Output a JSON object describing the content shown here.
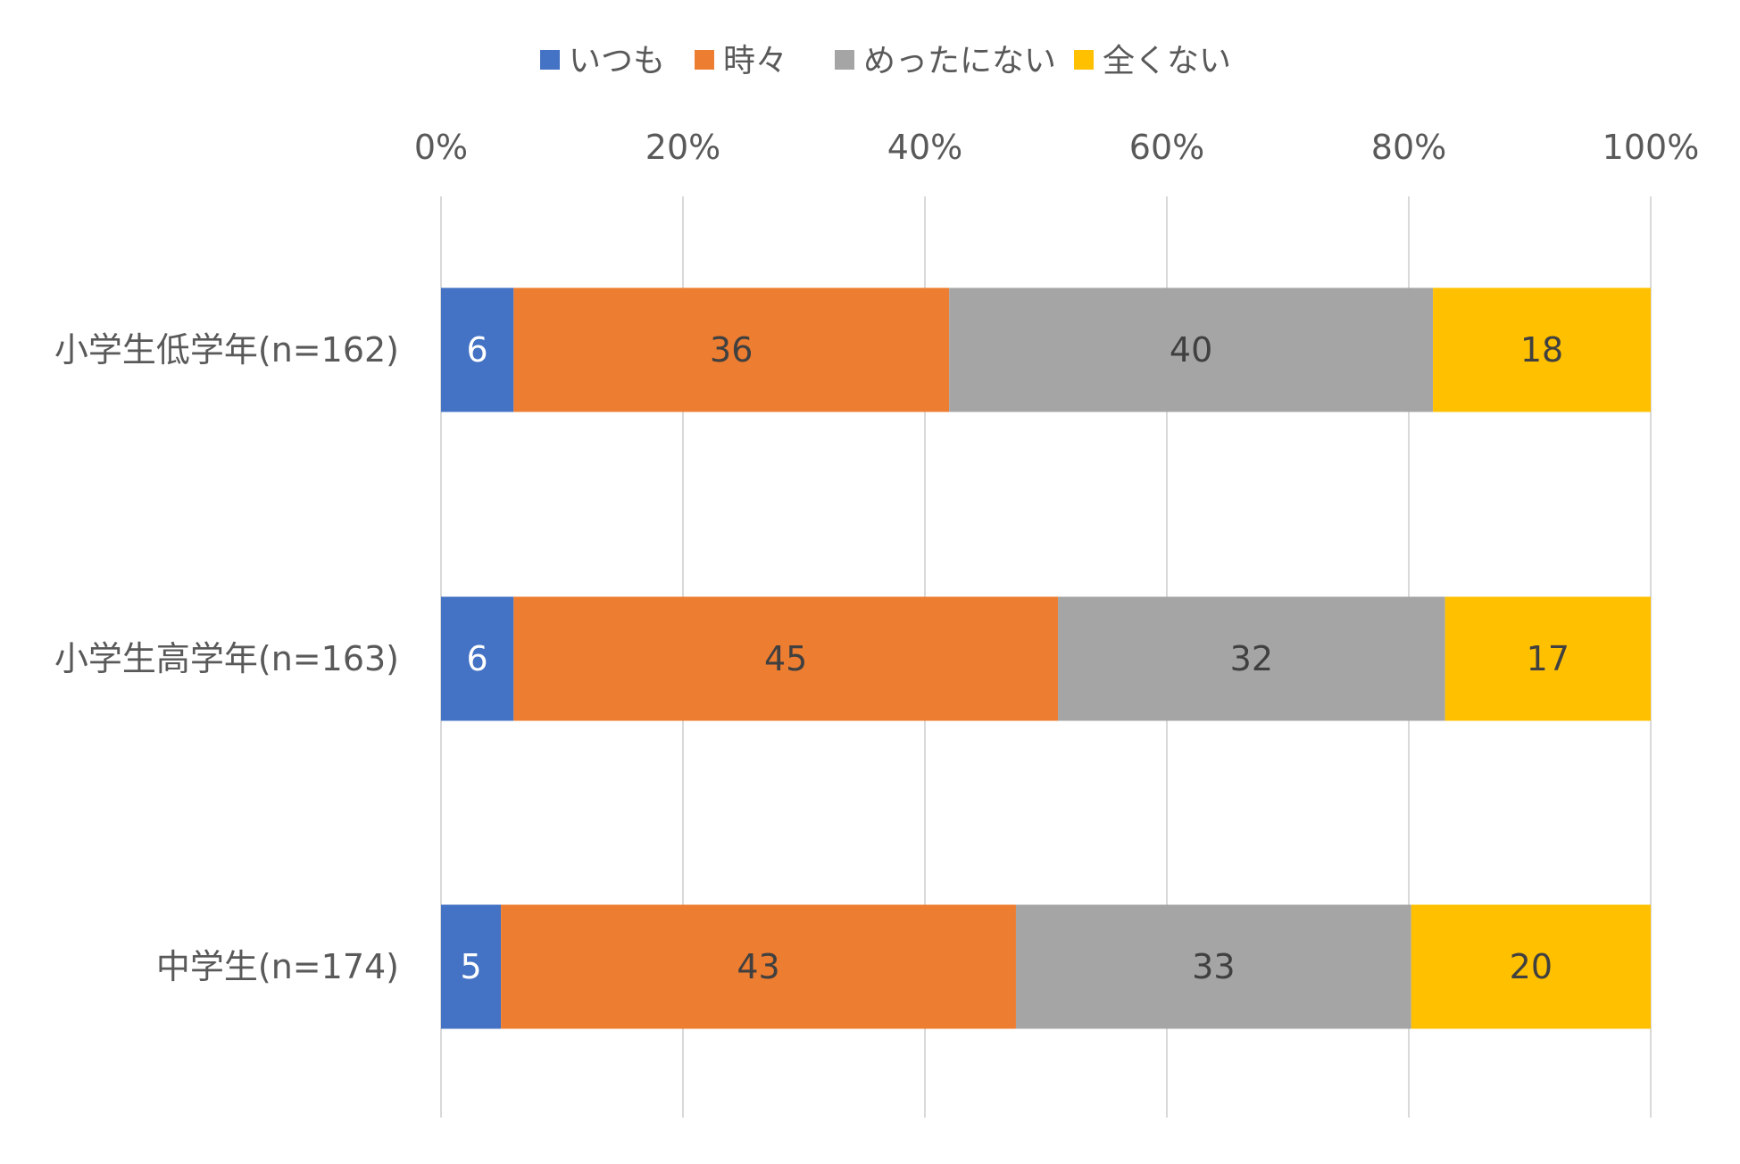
{
  "chart_data": {
    "type": "bar",
    "orientation": "horizontal",
    "stacked": "percent",
    "categories": [
      "小学生低学年(n=162)",
      "小学生高学年(n=163)",
      "中学生(n=174)"
    ],
    "series": [
      {
        "name": "いつも",
        "color": "#4472C4",
        "label_color": "#ffffff",
        "values": [
          6,
          6,
          5
        ]
      },
      {
        "name": "時々",
        "color": "#ED7D31",
        "label_color": "#404040",
        "values": [
          36,
          45,
          43
        ]
      },
      {
        "name": "めったにない",
        "color": "#A5A5A5",
        "label_color": "#404040",
        "values": [
          40,
          32,
          33
        ]
      },
      {
        "name": "全くない",
        "color": "#FFC000",
        "label_color": "#404040",
        "values": [
          18,
          17,
          20
        ]
      }
    ],
    "x_ticks": [
      "0%",
      "20%",
      "40%",
      "60%",
      "80%",
      "100%"
    ],
    "xlim": [
      0,
      100
    ],
    "x_axis_position": "top",
    "legend_position": "top",
    "grid": true,
    "title": "",
    "xlabel": "",
    "ylabel": ""
  }
}
